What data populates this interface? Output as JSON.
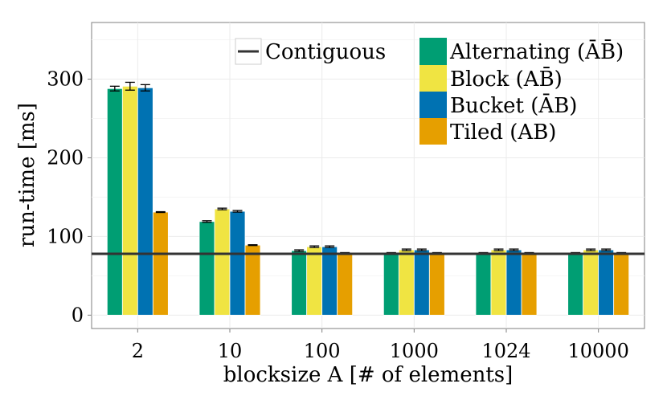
{
  "chart_data": {
    "type": "bar",
    "title": "",
    "xlabel": "blocksize A [# of elements]",
    "ylabel": "run-time [ms]",
    "ylim": [
      -17,
      372
    ],
    "yticks": [
      0,
      100,
      200,
      300
    ],
    "grid": true,
    "legend_position": "top-right",
    "categories": [
      "2",
      "10",
      "100",
      "1000",
      "1024",
      "10000"
    ],
    "series": [
      {
        "name": "Alternating",
        "legend_label": "Alternating (ĀB̄)",
        "color": "#009e73",
        "values": [
          288,
          119,
          82,
          79,
          79,
          79
        ],
        "errors": [
          3,
          1,
          1,
          0.5,
          0.5,
          0.5
        ]
      },
      {
        "name": "Block",
        "legend_label": "Block (AB̄)",
        "color": "#f0e442",
        "values": [
          291,
          135,
          87,
          83,
          83,
          83
        ],
        "errors": [
          5,
          1,
          1,
          1,
          1,
          1
        ]
      },
      {
        "name": "Bucket",
        "legend_label": "Bucket (ĀB)",
        "color": "#0072b2",
        "values": [
          289,
          132,
          87,
          83,
          83,
          83
        ],
        "errors": [
          4,
          1,
          1,
          1,
          1,
          1
        ]
      },
      {
        "name": "Tiled",
        "legend_label": "Tiled (AB)",
        "color": "#e69f00",
        "values": [
          131,
          89,
          79,
          79,
          79,
          79
        ],
        "errors": [
          0.5,
          0.5,
          0.5,
          0.5,
          0.5,
          0.5
        ]
      }
    ],
    "reference_line": {
      "name": "Contiguous",
      "value": 78,
      "color": "#333333"
    }
  }
}
